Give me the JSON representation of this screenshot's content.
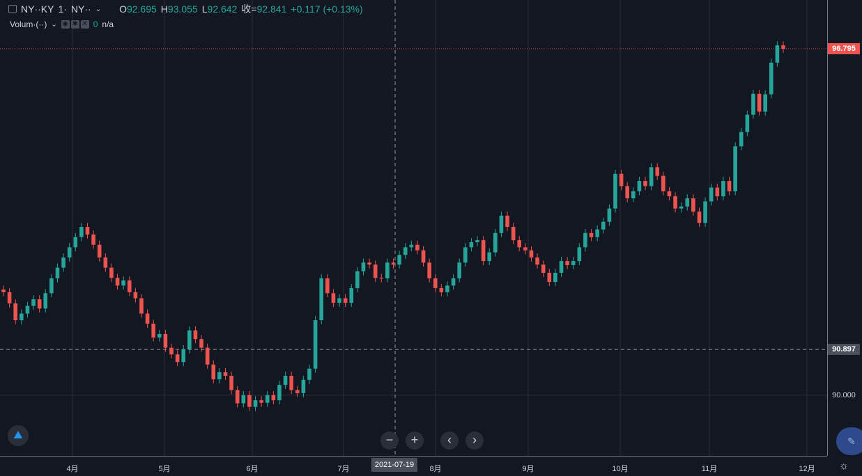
{
  "legend": {
    "symbol": "NY··KY",
    "interval": "1·",
    "exchange": "NY··",
    "open_label": "O",
    "open": "92.695",
    "high_label": "H",
    "high": "93.055",
    "low_label": "L",
    "low": "92.642",
    "close_label": "收=",
    "close": "92.841",
    "change": "+0.117 (+0.13%)"
  },
  "volume": {
    "label": "Volum·(··)",
    "value": "0",
    "na": "n/a"
  },
  "colors": {
    "up": "#26a69a",
    "down": "#ef5350",
    "background": "#131722",
    "grid": "#2a2e39"
  },
  "chart_data": {
    "type": "candlestick",
    "ylim": [
      88.81,
      97.75
    ],
    "y_ticks": [
      "90.000"
    ],
    "last_price": "96.795",
    "crosshair_price": "90.897",
    "crosshair_date": "2021-07-19",
    "x_tick_labels": [
      "4月",
      "5月",
      "6月",
      "7月",
      "8月",
      "9月",
      "10月",
      "11月",
      "12月"
    ],
    "closes": [
      92.02,
      91.8,
      91.47,
      91.6,
      91.75,
      91.88,
      91.7,
      92.0,
      92.29,
      92.5,
      92.7,
      92.9,
      93.1,
      93.3,
      93.15,
      92.95,
      92.7,
      92.5,
      92.3,
      92.15,
      92.25,
      92.02,
      91.9,
      91.6,
      91.4,
      91.13,
      91.2,
      90.93,
      90.8,
      90.65,
      90.9,
      91.27,
      91.1,
      90.93,
      90.6,
      90.31,
      90.45,
      90.38,
      90.1,
      89.84,
      90.0,
      89.77,
      89.9,
      89.85,
      90.0,
      89.9,
      90.2,
      90.38,
      90.1,
      90.04,
      90.3,
      90.52,
      91.47,
      92.29,
      92.0,
      91.81,
      91.9,
      91.81,
      92.1,
      92.43,
      92.6,
      92.56,
      92.3,
      92.29,
      92.6,
      92.56,
      92.75,
      92.9,
      92.95,
      92.84,
      92.6,
      92.29,
      92.1,
      92.02,
      92.15,
      92.29,
      92.6,
      92.9,
      93.0,
      93.04,
      92.63,
      92.8,
      93.18,
      93.52,
      93.3,
      93.04,
      92.9,
      92.84,
      92.7,
      92.56,
      92.4,
      92.22,
      92.4,
      92.63,
      92.55,
      92.63,
      92.9,
      93.18,
      93.1,
      93.25,
      93.4,
      93.66,
      94.34,
      94.1,
      93.86,
      94.0,
      94.2,
      94.1,
      94.47,
      94.3,
      94.0,
      93.9,
      93.66,
      93.7,
      93.86,
      93.6,
      93.38,
      93.8,
      94.07,
      93.9,
      94.2,
      94.0,
      94.88,
      95.16,
      95.5,
      95.91,
      95.56,
      95.9,
      96.52,
      96.86,
      96.795
    ]
  },
  "controls": {
    "zoom_out": "−",
    "zoom_in": "+",
    "prev": "‹",
    "next": "›"
  }
}
